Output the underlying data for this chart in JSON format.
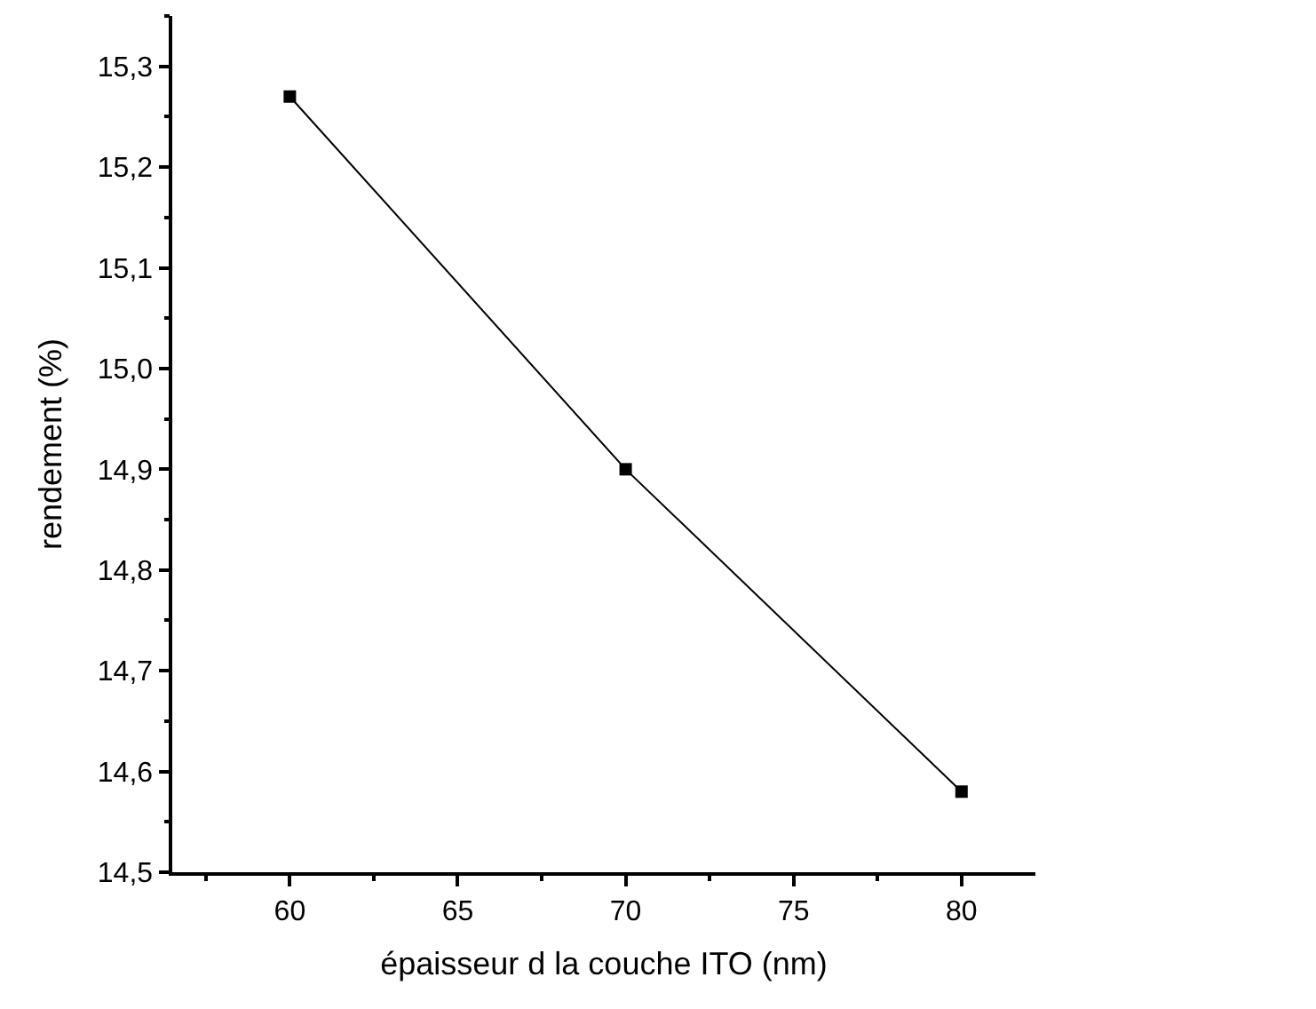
{
  "chart_data": {
    "type": "line",
    "xlabel": "épaisseur d la couche ITO (nm)",
    "ylabel": "rendement (%)",
    "x": [
      60,
      70,
      80
    ],
    "series": [
      {
        "color": "#000000",
        "values": [
          15.27,
          14.9,
          14.58
        ]
      }
    ],
    "marker": "square",
    "line_style": "solid",
    "xlim": [
      56.5,
      82.2
    ],
    "xticks": [
      60,
      65,
      70,
      75,
      80
    ],
    "ylim": [
      14.5,
      15.35
    ],
    "yticks": [
      {
        "value": 14.5,
        "label": "14,5"
      },
      {
        "value": 14.6,
        "label": "14,6"
      },
      {
        "value": 14.7,
        "label": "14,7"
      },
      {
        "value": 14.8,
        "label": "14,8"
      },
      {
        "value": 14.9,
        "label": "14,9"
      },
      {
        "value": 15.0,
        "label": "15,0"
      },
      {
        "value": 15.1,
        "label": "15,1"
      },
      {
        "value": 15.2,
        "label": "15,2"
      },
      {
        "value": 15.3,
        "label": "15,3"
      }
    ]
  }
}
